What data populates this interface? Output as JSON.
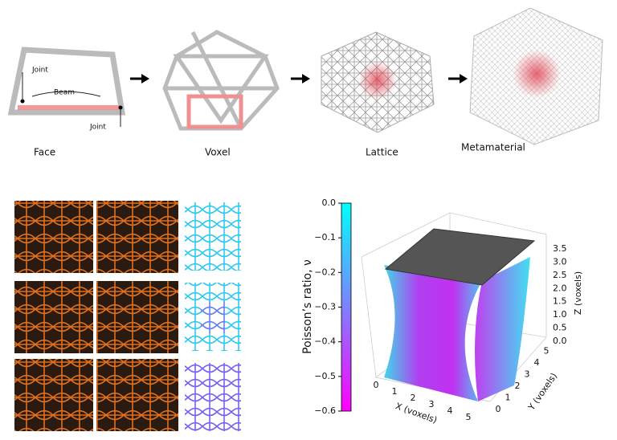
{
  "top": {
    "face": {
      "caption": "Face",
      "joint_top": "Joint",
      "beam": "Beam",
      "joint_bottom": "Joint"
    },
    "voxel": {
      "caption": "Voxel"
    },
    "lattice": {
      "caption": "Lattice"
    },
    "metamaterial": {
      "caption": "Metamaterial"
    }
  },
  "colorbar": {
    "label": "Poisson’s ratio, ν",
    "ticks": [
      "0.0",
      "−0.1",
      "−0.2",
      "−0.3",
      "−0.4",
      "−0.5",
      "−0.6"
    ]
  },
  "plot3d": {
    "x_label": "X (voxels)",
    "y_label": "Y (voxels)",
    "z_label": "Z (voxels)",
    "x_ticks": [
      "0",
      "1",
      "2",
      "3",
      "4",
      "5"
    ],
    "y_ticks": [
      "0",
      "1",
      "2",
      "3",
      "4",
      "5"
    ],
    "z_ticks": [
      "3.5",
      "3.0",
      "2.5",
      "2.0",
      "1.5",
      "1.0",
      "0.5",
      "0.0"
    ]
  }
}
